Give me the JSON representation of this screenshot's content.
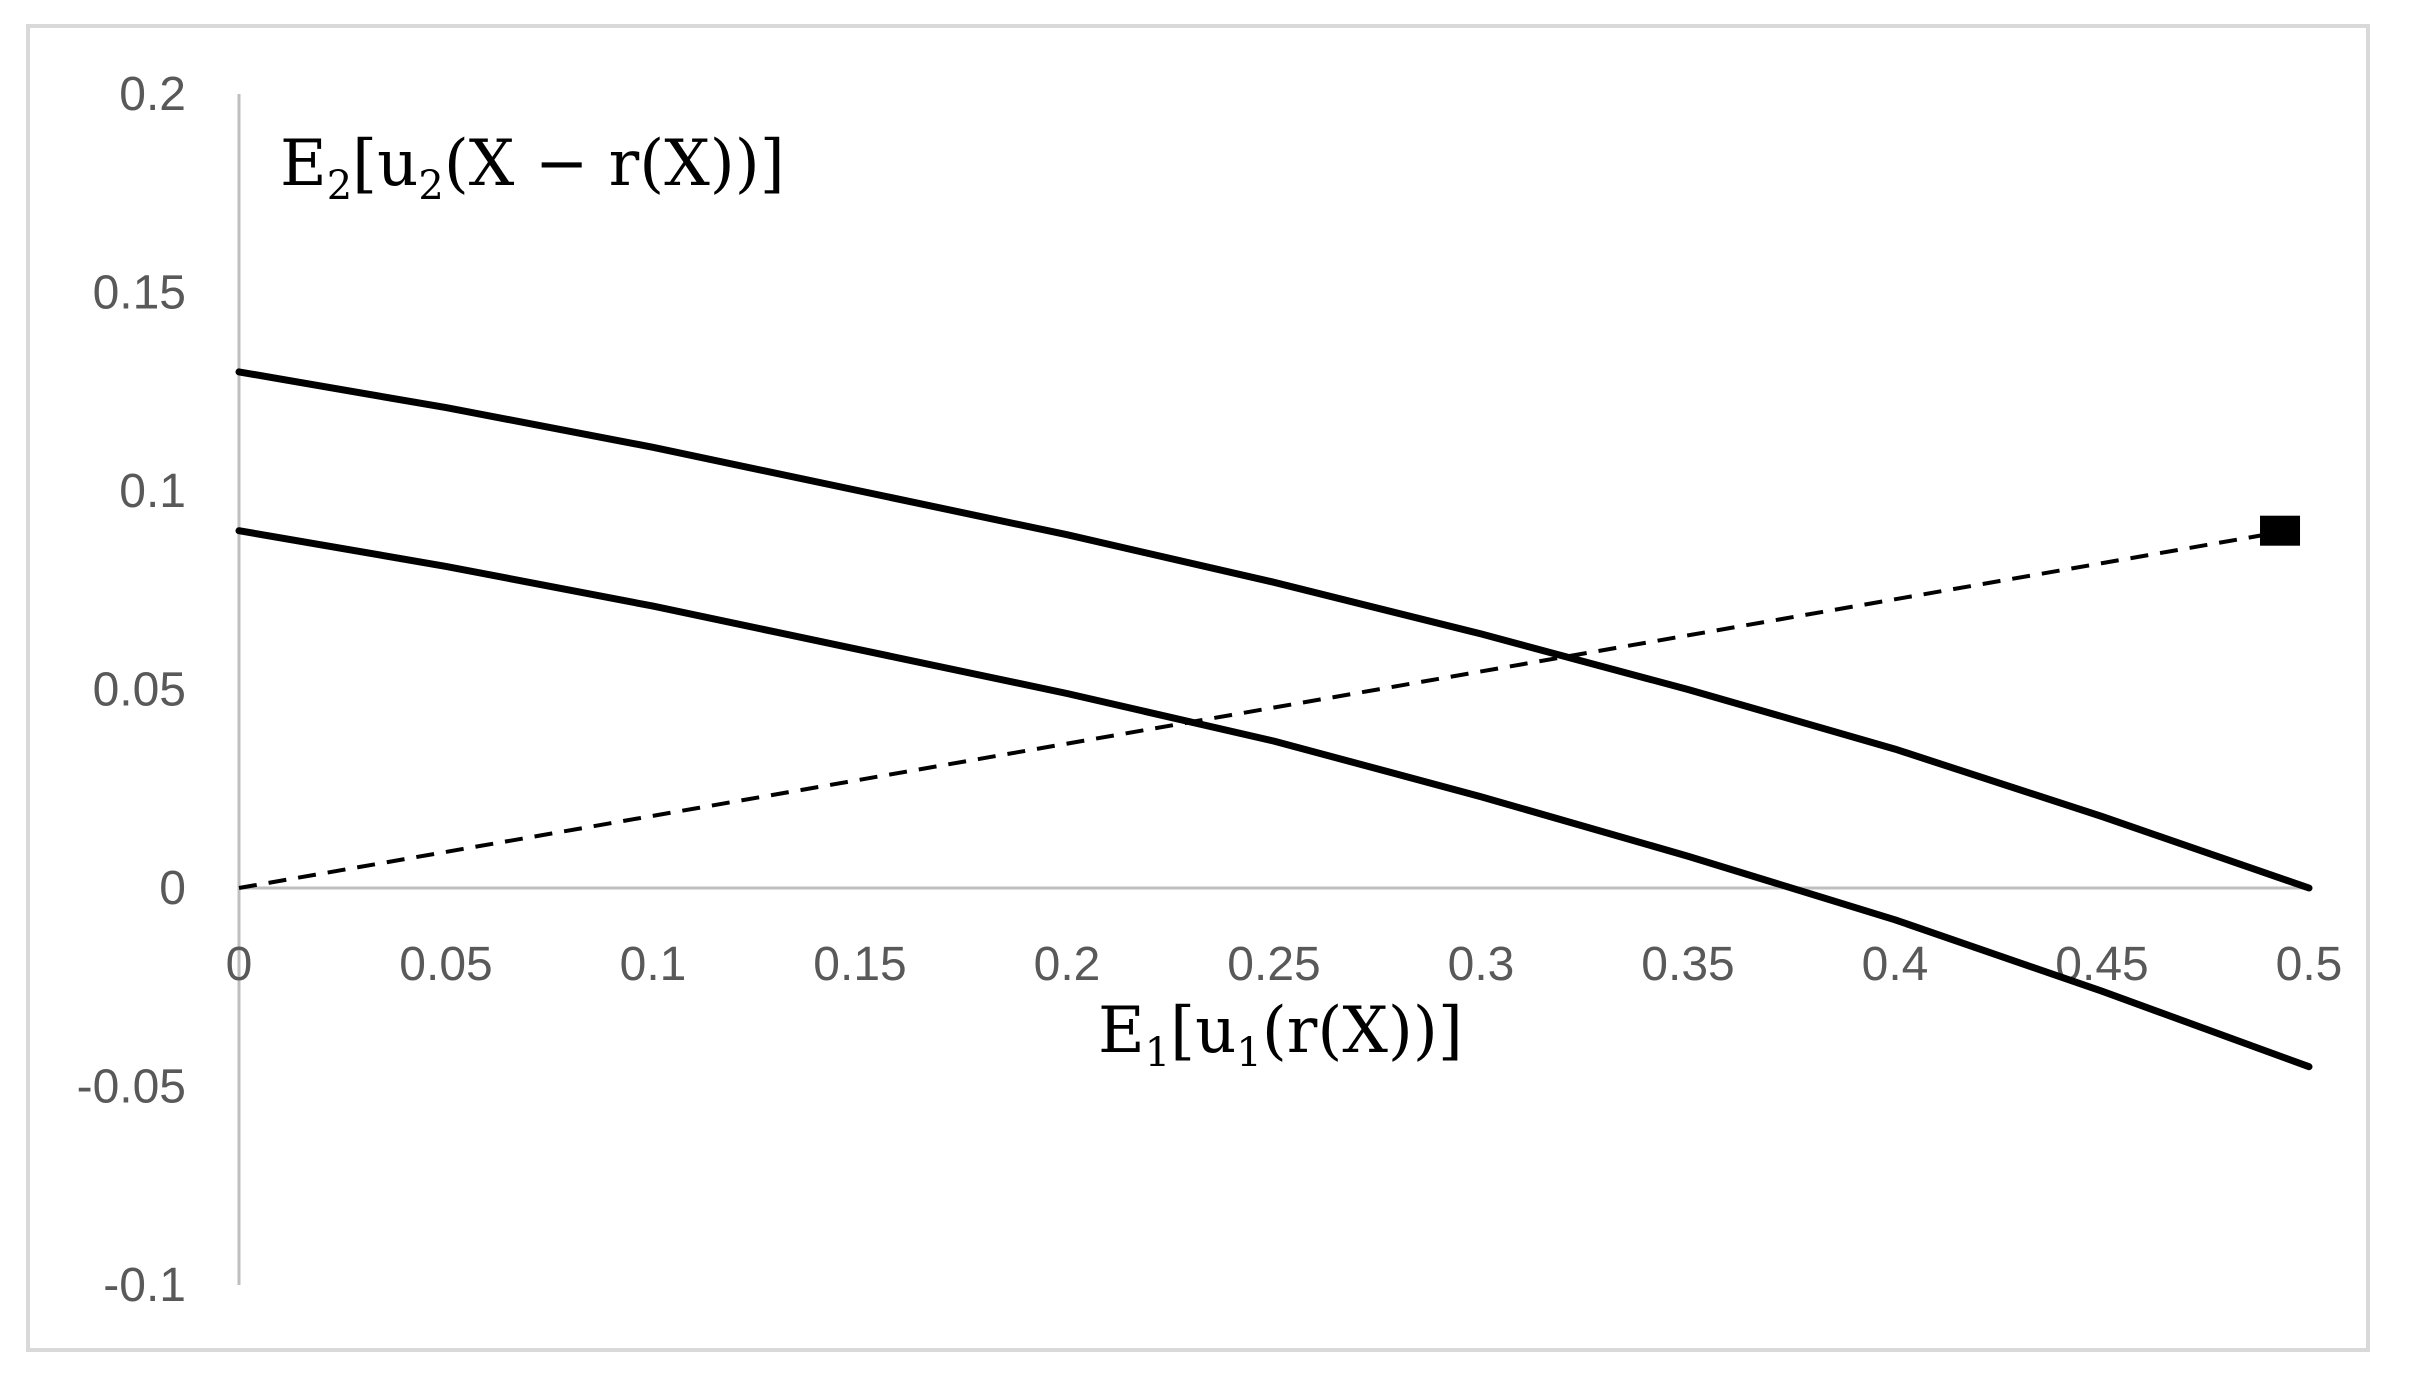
{
  "chart_data": {
    "type": "line",
    "xlabel": {
      "base1": "E",
      "sub1": "1",
      "mid": "[u",
      "sub2": "1",
      "tail": "(r(X))]"
    },
    "ylabel": {
      "base1": "E",
      "sub1": "2",
      "mid": "[u",
      "sub2": "2",
      "tail": "(X − r(X))]"
    },
    "xlim": [
      0,
      0.5
    ],
    "ylim": [
      -0.1,
      0.2
    ],
    "x_ticks": [
      {
        "value": 0,
        "label": "0"
      },
      {
        "value": 0.05,
        "label": "0.05"
      },
      {
        "value": 0.1,
        "label": "0.1"
      },
      {
        "value": 0.15,
        "label": "0.15"
      },
      {
        "value": 0.2,
        "label": "0.2"
      },
      {
        "value": 0.25,
        "label": "0.25"
      },
      {
        "value": 0.3,
        "label": "0.3"
      },
      {
        "value": 0.35,
        "label": "0.35"
      },
      {
        "value": 0.4,
        "label": "0.4"
      },
      {
        "value": 0.45,
        "label": "0.45"
      },
      {
        "value": 0.5,
        "label": "0.5"
      }
    ],
    "y_ticks": [
      {
        "value": 0.2,
        "label": "0.2"
      },
      {
        "value": 0.15,
        "label": "0.15"
      },
      {
        "value": 0.1,
        "label": "0.1"
      },
      {
        "value": 0.05,
        "label": "0.05"
      },
      {
        "value": 0,
        "label": "0"
      },
      {
        "value": -0.05,
        "label": "-0.05"
      },
      {
        "value": -0.1,
        "label": "-0.1"
      }
    ],
    "grid": false,
    "series": [
      {
        "style": "solid",
        "color": "#000000",
        "x": [
          0,
          0.05,
          0.1,
          0.15,
          0.2,
          0.25,
          0.3,
          0.35,
          0.4,
          0.45,
          0.5
        ],
        "y": [
          0.13,
          0.121,
          0.111,
          0.1,
          0.089,
          0.077,
          0.064,
          0.05,
          0.035,
          0.018,
          0.0
        ]
      },
      {
        "style": "solid",
        "color": "#000000",
        "x": [
          0,
          0.05,
          0.1,
          0.15,
          0.2,
          0.25,
          0.3,
          0.35,
          0.4,
          0.45,
          0.5
        ],
        "y": [
          0.09,
          0.081,
          0.071,
          0.06,
          0.049,
          0.037,
          0.023,
          0.008,
          -0.008,
          -0.026,
          -0.045
        ]
      },
      {
        "style": "dashed",
        "color": "#000000",
        "x": [
          0,
          0.495
        ],
        "y": [
          0,
          0.09
        ]
      }
    ],
    "markers": [
      {
        "shape": "square",
        "color": "#000000",
        "x": 0.493,
        "y": 0.09
      }
    ]
  }
}
